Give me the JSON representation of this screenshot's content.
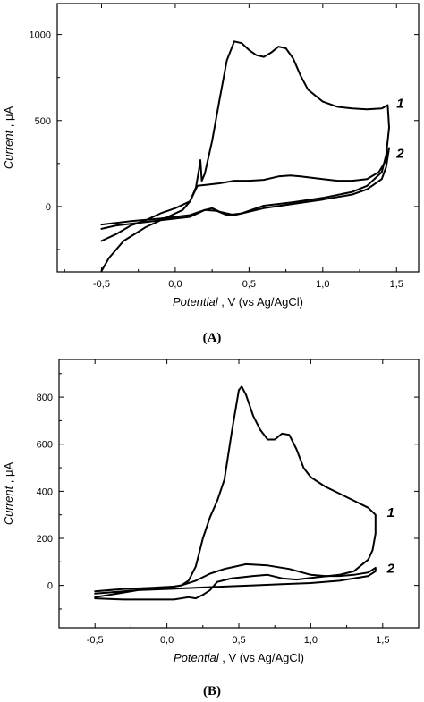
{
  "chart_data": [
    {
      "type": "line",
      "panel_label": "(A)",
      "xlabel": "Potential , V (vs Ag/AgCl)",
      "ylabel": "Current , μA",
      "xlim": [
        -0.8,
        1.65
      ],
      "ylim": [
        -380,
        1180
      ],
      "x_ticks": [
        -0.5,
        0.0,
        0.5,
        1.0,
        1.5
      ],
      "x_tick_labels": [
        "-0,5",
        "0,0",
        "0,5",
        "1,0",
        "1,5"
      ],
      "y_ticks": [
        0,
        500,
        1000
      ],
      "y_tick_labels": [
        "0",
        "500",
        "1000"
      ],
      "grid": false,
      "series": [
        {
          "name": "1",
          "label_at": [
            1.5,
            600
          ],
          "points": [
            [
              -0.5,
              -375
            ],
            [
              -0.45,
              -300
            ],
            [
              -0.35,
              -200
            ],
            [
              -0.2,
              -120
            ],
            [
              -0.05,
              -60
            ],
            [
              0.05,
              -20
            ],
            [
              0.1,
              30
            ],
            [
              0.14,
              110
            ],
            [
              0.16,
              210
            ],
            [
              0.17,
              270
            ],
            [
              0.18,
              150
            ],
            [
              0.2,
              190
            ],
            [
              0.25,
              380
            ],
            [
              0.3,
              620
            ],
            [
              0.35,
              850
            ],
            [
              0.4,
              960
            ],
            [
              0.45,
              950
            ],
            [
              0.5,
              910
            ],
            [
              0.55,
              880
            ],
            [
              0.6,
              870
            ],
            [
              0.65,
              895
            ],
            [
              0.7,
              930
            ],
            [
              0.75,
              920
            ],
            [
              0.8,
              860
            ],
            [
              0.85,
              760
            ],
            [
              0.9,
              680
            ],
            [
              1.0,
              610
            ],
            [
              1.1,
              580
            ],
            [
              1.2,
              570
            ],
            [
              1.3,
              565
            ],
            [
              1.4,
              570
            ],
            [
              1.44,
              590
            ],
            [
              1.45,
              460
            ],
            [
              1.43,
              300
            ],
            [
              1.4,
              200
            ],
            [
              1.3,
              120
            ],
            [
              1.2,
              85
            ],
            [
              1.0,
              50
            ],
            [
              0.8,
              25
            ],
            [
              0.6,
              5
            ],
            [
              0.45,
              -40
            ],
            [
              0.4,
              -50
            ],
            [
              0.3,
              -30
            ],
            [
              0.25,
              -10
            ],
            [
              0.2,
              -20
            ],
            [
              0.1,
              -60
            ],
            [
              -0.1,
              -80
            ],
            [
              -0.3,
              -100
            ],
            [
              -0.4,
              -110
            ],
            [
              -0.5,
              -130
            ]
          ]
        },
        {
          "name": "2",
          "label_at": [
            1.5,
            310
          ],
          "points": [
            [
              -0.5,
              -200
            ],
            [
              -0.4,
              -160
            ],
            [
              -0.3,
              -110
            ],
            [
              -0.2,
              -80
            ],
            [
              -0.1,
              -40
            ],
            [
              0.0,
              -10
            ],
            [
              0.1,
              30
            ],
            [
              0.15,
              120
            ],
            [
              0.2,
              125
            ],
            [
              0.3,
              135
            ],
            [
              0.4,
              150
            ],
            [
              0.5,
              150
            ],
            [
              0.6,
              155
            ],
            [
              0.7,
              175
            ],
            [
              0.78,
              180
            ],
            [
              0.85,
              175
            ],
            [
              1.0,
              160
            ],
            [
              1.1,
              150
            ],
            [
              1.2,
              150
            ],
            [
              1.3,
              160
            ],
            [
              1.38,
              200
            ],
            [
              1.43,
              270
            ],
            [
              1.45,
              340
            ],
            [
              1.43,
              230
            ],
            [
              1.4,
              160
            ],
            [
              1.3,
              100
            ],
            [
              1.2,
              70
            ],
            [
              1.0,
              40
            ],
            [
              0.8,
              15
            ],
            [
              0.6,
              -10
            ],
            [
              0.45,
              -40
            ],
            [
              0.35,
              -50
            ],
            [
              0.28,
              -25
            ],
            [
              0.2,
              -20
            ],
            [
              0.1,
              -50
            ],
            [
              -0.1,
              -70
            ],
            [
              -0.3,
              -85
            ],
            [
              -0.4,
              -95
            ],
            [
              -0.5,
              -105
            ]
          ]
        }
      ]
    },
    {
      "type": "line",
      "panel_label": "(B)",
      "xlabel": "Potential , V (vs Ag/AgCl)",
      "ylabel": "Current , μA",
      "xlim": [
        -0.75,
        1.75
      ],
      "ylim": [
        -180,
        960
      ],
      "x_ticks": [
        -0.5,
        0.0,
        0.5,
        1.0,
        1.5
      ],
      "x_tick_labels": [
        "-0,5",
        "0,0",
        "0,5",
        "1,0",
        "1,5"
      ],
      "y_ticks": [
        0,
        200,
        400,
        600,
        800
      ],
      "y_tick_labels": [
        "0",
        "200",
        "400",
        "600",
        "800"
      ],
      "grid": false,
      "series": [
        {
          "name": "1",
          "label_at": [
            1.53,
            310
          ],
          "points": [
            [
              -0.5,
              -25
            ],
            [
              -0.3,
              -15
            ],
            [
              -0.1,
              -10
            ],
            [
              0.05,
              -5
            ],
            [
              0.1,
              0
            ],
            [
              0.15,
              20
            ],
            [
              0.2,
              80
            ],
            [
              0.25,
              200
            ],
            [
              0.3,
              290
            ],
            [
              0.35,
              360
            ],
            [
              0.4,
              450
            ],
            [
              0.45,
              650
            ],
            [
              0.5,
              830
            ],
            [
              0.52,
              845
            ],
            [
              0.55,
              810
            ],
            [
              0.6,
              720
            ],
            [
              0.65,
              660
            ],
            [
              0.7,
              620
            ],
            [
              0.75,
              620
            ],
            [
              0.8,
              645
            ],
            [
              0.85,
              640
            ],
            [
              0.9,
              580
            ],
            [
              0.95,
              500
            ],
            [
              1.0,
              460
            ],
            [
              1.1,
              420
            ],
            [
              1.2,
              390
            ],
            [
              1.3,
              360
            ],
            [
              1.4,
              330
            ],
            [
              1.45,
              300
            ],
            [
              1.45,
              220
            ],
            [
              1.43,
              150
            ],
            [
              1.4,
              110
            ],
            [
              1.3,
              60
            ],
            [
              1.2,
              45
            ],
            [
              1.05,
              35
            ],
            [
              0.9,
              25
            ],
            [
              0.8,
              30
            ],
            [
              0.7,
              45
            ],
            [
              0.6,
              40
            ],
            [
              0.45,
              30
            ],
            [
              0.35,
              15
            ],
            [
              0.3,
              -20
            ],
            [
              0.25,
              -40
            ],
            [
              0.2,
              -55
            ],
            [
              0.15,
              -50
            ],
            [
              0.05,
              -60
            ],
            [
              -0.1,
              -60
            ],
            [
              -0.3,
              -60
            ],
            [
              -0.5,
              -55
            ]
          ]
        },
        {
          "name": "2",
          "label_at": [
            1.53,
            72
          ],
          "points": [
            [
              -0.5,
              -50
            ],
            [
              -0.4,
              -40
            ],
            [
              -0.2,
              -20
            ],
            [
              0.0,
              -10
            ],
            [
              0.1,
              0
            ],
            [
              0.2,
              20
            ],
            [
              0.3,
              50
            ],
            [
              0.4,
              70
            ],
            [
              0.55,
              90
            ],
            [
              0.7,
              85
            ],
            [
              0.85,
              70
            ],
            [
              1.0,
              45
            ],
            [
              1.1,
              40
            ],
            [
              1.2,
              40
            ],
            [
              1.3,
              45
            ],
            [
              1.4,
              55
            ],
            [
              1.45,
              75
            ],
            [
              1.45,
              60
            ],
            [
              1.4,
              40
            ],
            [
              1.2,
              20
            ],
            [
              1.0,
              10
            ],
            [
              0.8,
              5
            ],
            [
              0.6,
              0
            ],
            [
              0.4,
              -5
            ],
            [
              0.2,
              -10
            ],
            [
              0.0,
              -15
            ],
            [
              -0.2,
              -20
            ],
            [
              -0.4,
              -30
            ],
            [
              -0.5,
              -35
            ]
          ]
        }
      ]
    }
  ]
}
